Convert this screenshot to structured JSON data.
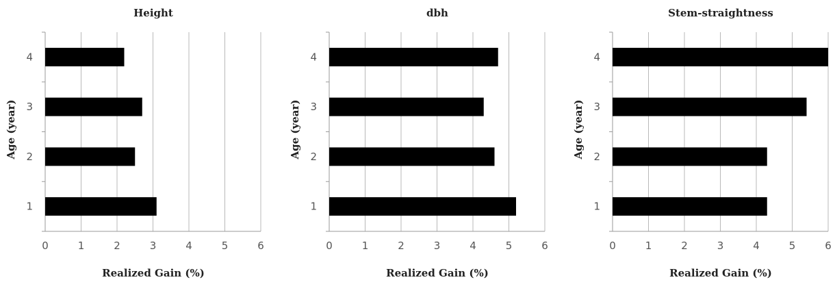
{
  "chart_data": [
    {
      "type": "bar",
      "orientation": "horizontal",
      "title": "Height",
      "xlabel": "Realized Gain (%)",
      "ylabel": "Age (year)",
      "categories": [
        "1",
        "2",
        "3",
        "4"
      ],
      "values": [
        3.1,
        2.5,
        2.7,
        2.2
      ],
      "xlim": [
        0,
        6
      ],
      "xticks": [
        "0",
        "1",
        "2",
        "3",
        "4",
        "5",
        "6"
      ],
      "grid": "vertical",
      "bar_color": "#000000"
    },
    {
      "type": "bar",
      "orientation": "horizontal",
      "title": "dbh",
      "xlabel": "Realized Gain (%)",
      "ylabel": "Age (year)",
      "categories": [
        "1",
        "2",
        "3",
        "4"
      ],
      "values": [
        5.2,
        4.6,
        4.3,
        4.7
      ],
      "xlim": [
        0,
        6
      ],
      "xticks": [
        "0",
        "1",
        "2",
        "3",
        "4",
        "5",
        "6"
      ],
      "grid": "vertical",
      "bar_color": "#000000"
    },
    {
      "type": "bar",
      "orientation": "horizontal",
      "title": "Stem-straightness",
      "xlabel": "Realized Gain (%)",
      "ylabel": "Age (year)",
      "categories": [
        "1",
        "2",
        "3",
        "4"
      ],
      "values": [
        4.3,
        4.3,
        5.4,
        6.0
      ],
      "xlim": [
        0,
        6
      ],
      "xticks": [
        "0",
        "1",
        "2",
        "3",
        "4",
        "5",
        "6"
      ],
      "grid": "vertical",
      "bar_color": "#000000"
    }
  ]
}
